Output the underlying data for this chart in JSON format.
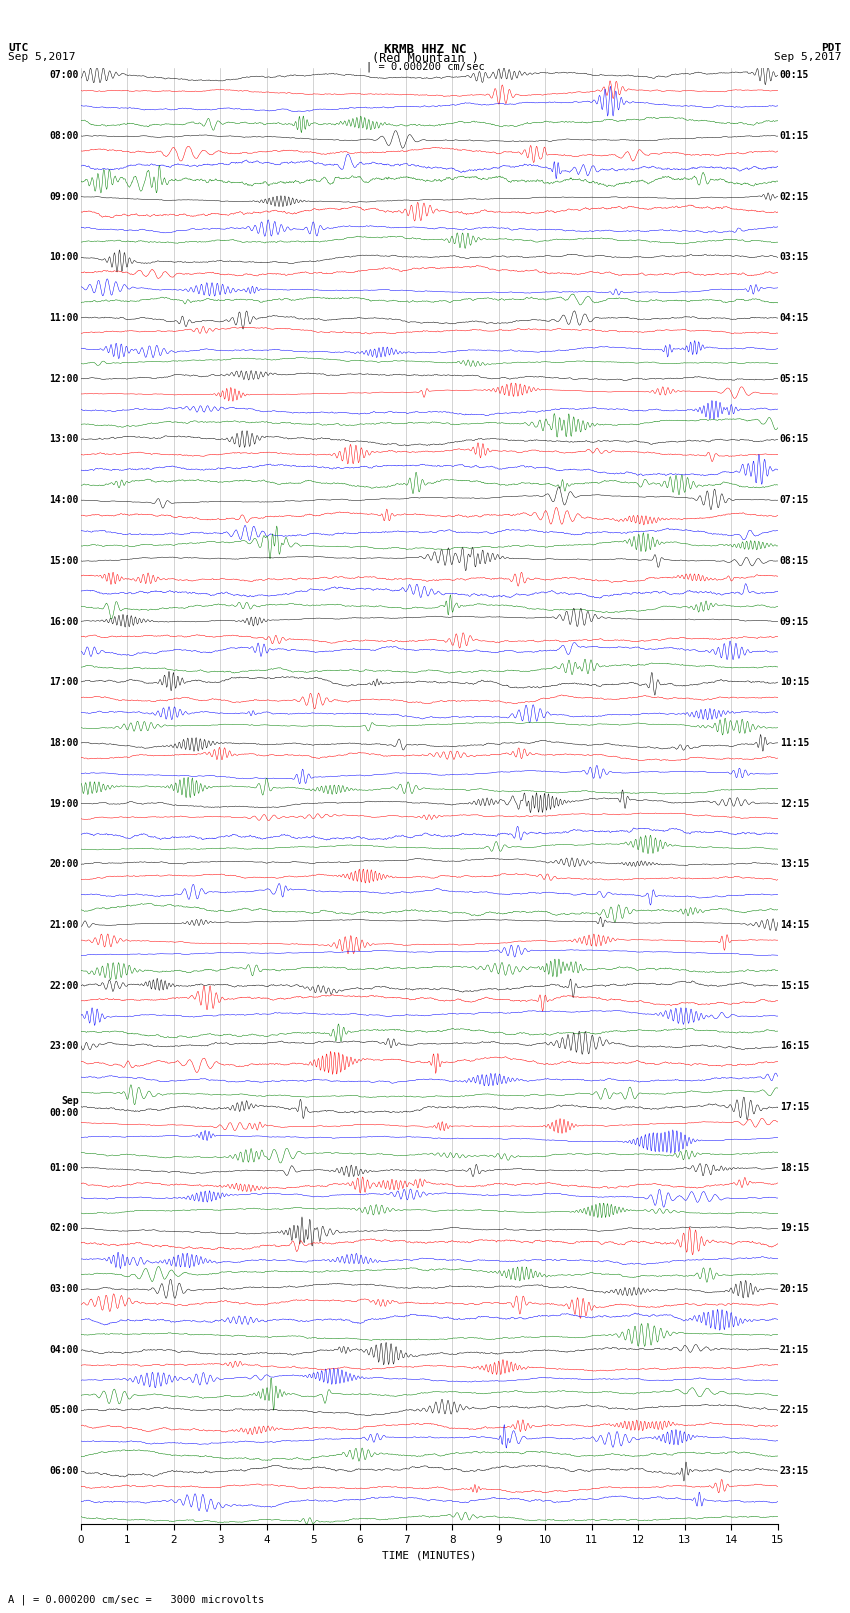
{
  "title_line1": "KRMB HHZ NC",
  "title_line2": "(Red Mountain )",
  "scale_text": "| = 0.000200 cm/sec",
  "bottom_note": "A | = 0.000200 cm/sec =   3000 microvolts",
  "xlabel": "TIME (MINUTES)",
  "colors": [
    "black",
    "red",
    "blue",
    "green"
  ],
  "figsize": [
    8.5,
    16.13
  ],
  "dpi": 100,
  "background_color": "white",
  "num_groups": 24,
  "traces_per_group": 4,
  "minutes_per_row": 15,
  "left_time_labels": [
    "07:00",
    "08:00",
    "09:00",
    "10:00",
    "11:00",
    "12:00",
    "13:00",
    "14:00",
    "15:00",
    "16:00",
    "17:00",
    "18:00",
    "19:00",
    "20:00",
    "21:00",
    "22:00",
    "23:00",
    "Sep\n00:00",
    "01:00",
    "02:00",
    "03:00",
    "04:00",
    "05:00",
    "06:00"
  ],
  "right_time_labels": [
    "00:15",
    "01:15",
    "02:15",
    "03:15",
    "04:15",
    "05:15",
    "06:15",
    "07:15",
    "08:15",
    "09:15",
    "10:15",
    "11:15",
    "12:15",
    "13:15",
    "14:15",
    "15:15",
    "16:15",
    "17:15",
    "18:15",
    "19:15",
    "20:15",
    "21:15",
    "22:15",
    "23:15"
  ],
  "xticks": [
    0,
    1,
    2,
    3,
    4,
    5,
    6,
    7,
    8,
    9,
    10,
    11,
    12,
    13,
    14,
    15
  ],
  "xlim": [
    0,
    15
  ]
}
